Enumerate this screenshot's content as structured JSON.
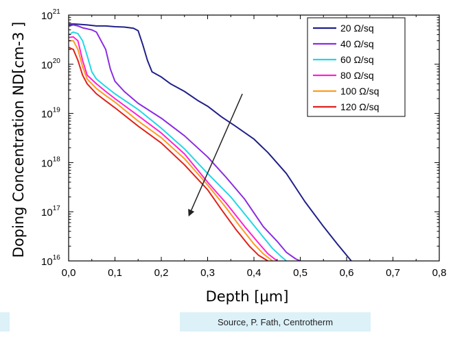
{
  "source_note": "Source, P. Fath, Centrotherm",
  "chart_data": {
    "type": "line",
    "title": "",
    "xlabel": "Depth [µm]",
    "ylabel": "Doping Concentration ND[cm-3 ]",
    "xscale": "linear",
    "yscale": "log",
    "xlim": [
      0,
      0.8
    ],
    "ylim": [
      1e+16,
      1e+21
    ],
    "x_ticks": [
      "0,0",
      "0,1",
      "0,2",
      "0,3",
      "0,4",
      "0,5",
      "0,6",
      "0,7",
      "0,8"
    ],
    "y_ticks": [
      {
        "base": "10",
        "exp": "16"
      },
      {
        "base": "10",
        "exp": "17"
      },
      {
        "base": "10",
        "exp": "18"
      },
      {
        "base": "10",
        "exp": "19"
      },
      {
        "base": "10",
        "exp": "20"
      },
      {
        "base": "10",
        "exp": "21"
      }
    ],
    "grid": false,
    "legend_position": "top-right",
    "annotation": {
      "type": "arrow",
      "from": [
        0.375,
        2.5e+19
      ],
      "to": [
        0.26,
        8.5e+16
      ]
    },
    "series": [
      {
        "name": "20 Ω/sq",
        "color": "#1f1f8a",
        "x": [
          0.0,
          0.01,
          0.02,
          0.04,
          0.06,
          0.08,
          0.1,
          0.12,
          0.14,
          0.15,
          0.16,
          0.17,
          0.18,
          0.2,
          0.22,
          0.25,
          0.28,
          0.3,
          0.33,
          0.36,
          0.4,
          0.43,
          0.47,
          0.51,
          0.55,
          0.58,
          0.61
        ],
        "y": [
          6.5e+20,
          6.6e+20,
          6.5e+20,
          6.3e+20,
          6e+20,
          6e+20,
          5.8e+20,
          5.7e+20,
          5.4e+20,
          4.8e+20,
          2.5e+20,
          1.2e+20,
          7e+19,
          5.5e+19,
          4e+19,
          2.8e+19,
          1.8e+19,
          1.4e+19,
          8.5e+18,
          5.5e+18,
          3e+18,
          1.6e+18,
          6e+17,
          1.6e+17,
          5e+16,
          2.2e+16,
          1e+16
        ]
      },
      {
        "name": "40 Ω/sq",
        "color": "#8a2be2",
        "x": [
          0.0,
          0.01,
          0.02,
          0.03,
          0.05,
          0.06,
          0.08,
          0.09,
          0.1,
          0.12,
          0.15,
          0.2,
          0.25,
          0.3,
          0.34,
          0.38,
          0.42,
          0.45,
          0.47,
          0.49,
          0.5
        ],
        "y": [
          6e+20,
          6.3e+20,
          6e+20,
          5.5e+20,
          5e+20,
          4.5e+20,
          2e+20,
          8e+19,
          4.5e+19,
          2.8e+19,
          1.6e+19,
          8e+18,
          3.5e+18,
          1.3e+18,
          5e+17,
          1.8e+17,
          5e+16,
          2.5e+16,
          1.5e+16,
          1.1e+16,
          1e+16
        ]
      },
      {
        "name": "60 Ω/sq",
        "color": "#1fd8e6",
        "x": [
          0.0,
          0.01,
          0.02,
          0.03,
          0.04,
          0.05,
          0.06,
          0.08,
          0.1,
          0.15,
          0.2,
          0.25,
          0.3,
          0.35,
          0.38,
          0.41,
          0.44,
          0.46,
          0.47
        ],
        "y": [
          4e+20,
          4.5e+20,
          4.2e+20,
          3e+20,
          1.5e+20,
          7e+19,
          5e+19,
          3.5e+19,
          2.5e+19,
          1.2e+19,
          5e+18,
          1.9e+18,
          6e+17,
          2e+17,
          9e+16,
          4e+16,
          1.8e+16,
          1.2e+16,
          1e+16
        ]
      },
      {
        "name": "80 Ω/sq",
        "color": "#ff20d0",
        "x": [
          0.0,
          0.01,
          0.02,
          0.03,
          0.04,
          0.06,
          0.08,
          0.1,
          0.15,
          0.2,
          0.25,
          0.3,
          0.34,
          0.38,
          0.41,
          0.43,
          0.45
        ],
        "y": [
          3.5e+20,
          3.6e+20,
          3e+20,
          1.2e+20,
          6e+19,
          4e+19,
          2.8e+19,
          2e+19,
          9e+18,
          4e+18,
          1.5e+18,
          4e+17,
          1.5e+17,
          5e+16,
          2.3e+16,
          1.4e+16,
          1e+16
        ]
      },
      {
        "name": "100 Ω/sq",
        "color": "#ff9a1f",
        "x": [
          0.0,
          0.01,
          0.02,
          0.03,
          0.04,
          0.06,
          0.08,
          0.1,
          0.15,
          0.2,
          0.25,
          0.3,
          0.34,
          0.37,
          0.4,
          0.42,
          0.44
        ],
        "y": [
          3e+20,
          3e+20,
          2e+20,
          9e+19,
          5e+19,
          3.2e+19,
          2.3e+19,
          1.7e+19,
          7e+18,
          3.2e+18,
          1.2e+18,
          3.5e+17,
          1.2e+17,
          5e+16,
          2.2e+16,
          1.4e+16,
          1e+16
        ]
      },
      {
        "name": "120 Ω/sq",
        "color": "#e0201a",
        "x": [
          0.0,
          0.01,
          0.02,
          0.03,
          0.04,
          0.06,
          0.08,
          0.1,
          0.15,
          0.2,
          0.25,
          0.3,
          0.33,
          0.36,
          0.39,
          0.41,
          0.43
        ],
        "y": [
          2.2e+20,
          2e+20,
          1.2e+20,
          6e+19,
          4e+19,
          2.5e+19,
          1.8e+19,
          1.3e+19,
          5.5e+18,
          2.5e+18,
          9e+17,
          2.8e+17,
          1.1e+17,
          4.5e+16,
          2e+16,
          1.3e+16,
          1e+16
        ]
      }
    ]
  }
}
